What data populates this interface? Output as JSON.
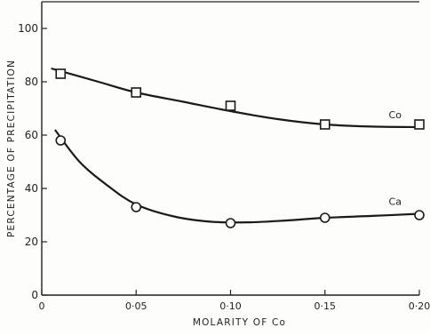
{
  "chart_data": {
    "type": "line",
    "xlabel": "MOLARITY OF Co",
    "ylabel": "PERCENTAGE OF PRECIPITATION",
    "xlim": [
      0,
      0.2
    ],
    "ylim": [
      0,
      110
    ],
    "x_ticks": [
      {
        "value": 0,
        "label": "0"
      },
      {
        "value": 0.05,
        "label": "0·05"
      },
      {
        "value": 0.1,
        "label": "0·10"
      },
      {
        "value": 0.15,
        "label": "0·15"
      },
      {
        "value": 0.2,
        "label": "0·20"
      }
    ],
    "y_ticks": [
      {
        "value": 0,
        "label": "0"
      },
      {
        "value": 20,
        "label": "20"
      },
      {
        "value": 40,
        "label": "40"
      },
      {
        "value": 60,
        "label": "60"
      },
      {
        "value": 80,
        "label": "80"
      },
      {
        "value": 100,
        "label": "100"
      }
    ],
    "grid": false,
    "series": [
      {
        "name": "Co",
        "marker": "square",
        "points": [
          {
            "x": 0.01,
            "y": 83
          },
          {
            "x": 0.05,
            "y": 76
          },
          {
            "x": 0.1,
            "y": 71
          },
          {
            "x": 0.15,
            "y": 64
          },
          {
            "x": 0.2,
            "y": 64
          }
        ],
        "curve": [
          {
            "x": 0.005,
            "y": 85
          },
          {
            "x": 0.03,
            "y": 80
          },
          {
            "x": 0.05,
            "y": 76
          },
          {
            "x": 0.075,
            "y": 72.5
          },
          {
            "x": 0.1,
            "y": 69
          },
          {
            "x": 0.125,
            "y": 66
          },
          {
            "x": 0.15,
            "y": 64
          },
          {
            "x": 0.175,
            "y": 63.2
          },
          {
            "x": 0.2,
            "y": 63
          }
        ]
      },
      {
        "name": "Ca",
        "marker": "circle",
        "points": [
          {
            "x": 0.01,
            "y": 58
          },
          {
            "x": 0.05,
            "y": 33
          },
          {
            "x": 0.1,
            "y": 27
          },
          {
            "x": 0.15,
            "y": 29
          },
          {
            "x": 0.2,
            "y": 30
          }
        ],
        "curve": [
          {
            "x": 0.007,
            "y": 62
          },
          {
            "x": 0.02,
            "y": 50
          },
          {
            "x": 0.035,
            "y": 41
          },
          {
            "x": 0.05,
            "y": 34
          },
          {
            "x": 0.07,
            "y": 29.5
          },
          {
            "x": 0.09,
            "y": 27.5
          },
          {
            "x": 0.11,
            "y": 27.3
          },
          {
            "x": 0.13,
            "y": 28
          },
          {
            "x": 0.15,
            "y": 29
          },
          {
            "x": 0.175,
            "y": 29.7
          },
          {
            "x": 0.2,
            "y": 30.5
          }
        ]
      }
    ]
  }
}
